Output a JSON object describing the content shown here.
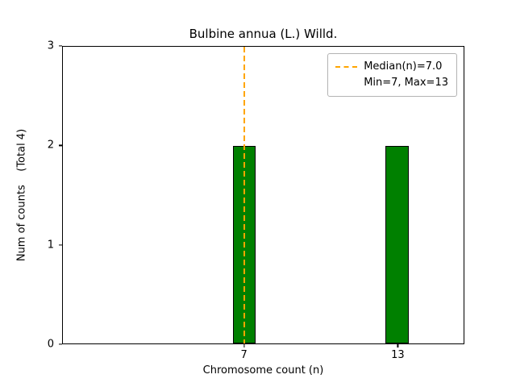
{
  "chart_data": {
    "type": "bar",
    "title": "Bulbine annua (L.) Willd.",
    "xlabel": "Chromosome count (n)",
    "ylabel": "Num of counts    (Total 4)",
    "x": [
      7,
      13
    ],
    "counts": [
      2,
      2
    ],
    "bar_width": 0.9,
    "bar_color": "#008000",
    "bar_edge_color": "#000000",
    "xlim": [
      -0.1,
      15.6
    ],
    "ylim": [
      0,
      3
    ],
    "xticks": [
      7,
      13
    ],
    "yticks": [
      0,
      1,
      2,
      3
    ],
    "median": 7.0,
    "median_line_color": "#FFA500",
    "median_line_style": "dashed",
    "total_counts": 4,
    "min": 7,
    "max": 13,
    "grid": false,
    "legend": {
      "position": "upper right",
      "entries": [
        "Median(n)=7.0",
        "Min=7, Max=13"
      ]
    }
  }
}
